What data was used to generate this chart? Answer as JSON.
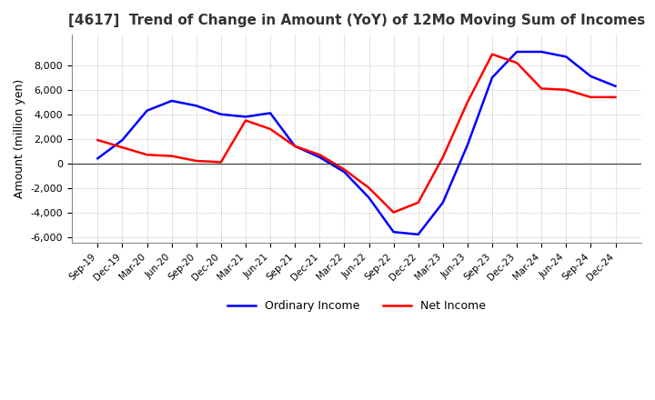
{
  "title": "[4617]  Trend of Change in Amount (YoY) of 12Mo Moving Sum of Incomes",
  "ylabel": "Amount (million yen)",
  "xlabels": [
    "Sep-19",
    "Dec-19",
    "Mar-20",
    "Jun-20",
    "Sep-20",
    "Dec-20",
    "Mar-21",
    "Jun-21",
    "Sep-21",
    "Dec-21",
    "Mar-22",
    "Jun-22",
    "Sep-22",
    "Dec-22",
    "Mar-23",
    "Jun-23",
    "Sep-23",
    "Dec-23",
    "Mar-24",
    "Jun-24",
    "Sep-24",
    "Dec-24"
  ],
  "ordinary_income": [
    400,
    1900,
    4300,
    5100,
    4700,
    4000,
    3800,
    4100,
    1400,
    500,
    -700,
    -2800,
    -5600,
    -5800,
    -3200,
    1500,
    7000,
    9100,
    9100,
    8700,
    7100,
    6300
  ],
  "net_income": [
    1900,
    1300,
    700,
    600,
    200,
    100,
    3500,
    2800,
    1400,
    700,
    -500,
    -2000,
    -4000,
    -3200,
    500,
    5000,
    8900,
    8200,
    6100,
    6000,
    5400,
    5400
  ],
  "ordinary_color": "#0000ff",
  "net_color": "#ff0000",
  "ylim": [
    -6500,
    10500
  ],
  "yticks": [
    -6000,
    -4000,
    -2000,
    0,
    2000,
    4000,
    6000,
    8000
  ],
  "grid_color": "#aaaaaa",
  "background_color": "#ffffff",
  "legend_ordinary": "Ordinary Income",
  "legend_net": "Net Income",
  "line_width": 1.8
}
